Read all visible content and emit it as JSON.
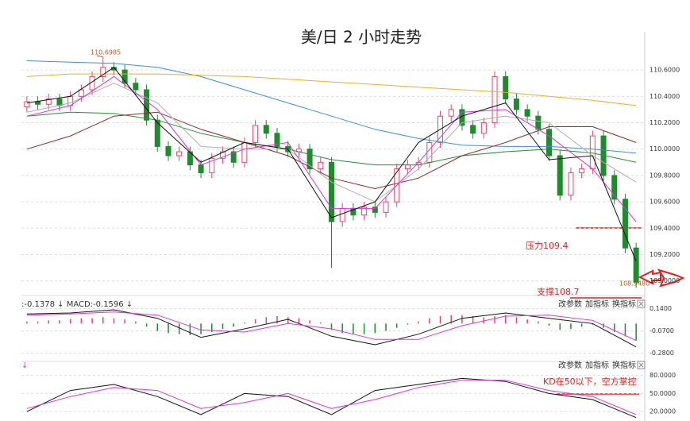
{
  "chart_data": [
    {
      "type": "candlestick",
      "title": "美/日 2 小时走势",
      "open": [
        110.32,
        110.36,
        110.34,
        110.38,
        110.33,
        110.4,
        110.45,
        110.55,
        110.62,
        110.6,
        110.5,
        110.45,
        110.22,
        110.02,
        109.95,
        109.98,
        109.88,
        109.82,
        109.93,
        109.98,
        109.9,
        110.05,
        110.18,
        110.12,
        110.02,
        109.98,
        110.0,
        109.85,
        109.9,
        109.45,
        109.55,
        109.5,
        109.56,
        109.52,
        109.6,
        109.85,
        109.88,
        109.9,
        110.05,
        110.25,
        110.3,
        110.18,
        110.12,
        110.2,
        110.55,
        110.38,
        110.3,
        110.25,
        110.15,
        109.95,
        109.65,
        109.82,
        109.85,
        110.1,
        109.8,
        109.62,
        109.25
      ],
      "high": [
        110.4,
        110.4,
        110.42,
        110.42,
        110.44,
        110.49,
        110.59,
        110.6985,
        110.66,
        110.64,
        110.54,
        110.49,
        110.26,
        110.06,
        110.02,
        110.02,
        109.92,
        109.97,
        110.02,
        110.02,
        110.09,
        110.22,
        110.22,
        110.16,
        110.06,
        110.04,
        110.04,
        109.94,
        109.94,
        109.59,
        109.59,
        109.6,
        109.6,
        109.64,
        109.89,
        109.92,
        109.94,
        110.09,
        110.29,
        110.34,
        110.34,
        110.22,
        110.24,
        110.59,
        110.59,
        110.42,
        110.34,
        110.29,
        110.19,
        109.99,
        109.86,
        109.89,
        110.14,
        110.14,
        109.84,
        109.66,
        109.29
      ],
      "low": [
        110.28,
        110.3,
        110.3,
        110.29,
        110.29,
        110.36,
        110.41,
        110.51,
        110.56,
        110.46,
        110.41,
        110.18,
        109.98,
        109.91,
        109.91,
        109.84,
        109.78,
        109.78,
        109.89,
        109.86,
        109.86,
        110.01,
        110.08,
        109.98,
        109.94,
        109.94,
        109.81,
        109.81,
        109.1,
        109.41,
        109.46,
        109.46,
        109.48,
        109.48,
        109.56,
        109.81,
        109.84,
        109.86,
        110.01,
        110.21,
        110.14,
        110.08,
        110.08,
        110.16,
        110.34,
        110.26,
        110.21,
        110.11,
        109.91,
        109.61,
        109.61,
        109.78,
        109.81,
        109.76,
        109.58,
        109.21,
        108.948
      ],
      "close": [
        110.36,
        110.34,
        110.38,
        110.33,
        110.4,
        110.45,
        110.55,
        110.62,
        110.6,
        110.5,
        110.45,
        110.22,
        110.02,
        109.95,
        109.98,
        109.88,
        109.82,
        109.93,
        109.98,
        109.9,
        110.05,
        110.18,
        110.12,
        110.02,
        109.98,
        110.0,
        109.85,
        109.9,
        109.45,
        109.55,
        109.5,
        109.56,
        109.52,
        109.6,
        109.85,
        109.88,
        109.9,
        110.05,
        110.25,
        110.3,
        110.18,
        110.12,
        110.2,
        110.55,
        110.38,
        110.3,
        110.25,
        110.15,
        109.95,
        109.65,
        109.82,
        109.85,
        110.1,
        109.8,
        109.62,
        109.25,
        108.99
      ],
      "up_color": "#e8476a",
      "down_color": "#1f8a2e",
      "series": [
        {
          "color": "#3f8fd8",
          "values": [
            110.67,
            110.66,
            110.65,
            110.62,
            110.55,
            110.45,
            110.35,
            110.25,
            110.15,
            110.08,
            110.03,
            110.02,
            110.02,
            110.0,
            109.97
          ]
        },
        {
          "color": "#e8b030",
          "values": [
            110.55,
            110.57,
            110.57,
            110.57,
            110.56,
            110.55,
            110.53,
            110.51,
            110.49,
            110.47,
            110.45,
            110.43,
            110.4,
            110.37,
            110.33
          ]
        },
        {
          "color": "#2e8b3a",
          "values": [
            110.25,
            110.28,
            110.27,
            110.22,
            110.12,
            110.05,
            110.0,
            109.92,
            109.88,
            109.88,
            109.95,
            109.98,
            110.0,
            109.97,
            109.9
          ]
        },
        {
          "color": "#8b2a2a",
          "values": [
            110.0,
            110.1,
            110.25,
            110.28,
            110.15,
            110.05,
            109.95,
            109.78,
            109.7,
            109.78,
            109.95,
            110.05,
            110.17,
            110.17,
            110.05
          ]
        },
        {
          "color": "#b0b0b0",
          "values": [
            110.28,
            110.35,
            110.5,
            110.35,
            110.02,
            110.0,
            110.0,
            109.75,
            109.6,
            109.85,
            110.2,
            110.25,
            110.2,
            109.95,
            109.75
          ]
        },
        {
          "color": "#d63ad6",
          "values": [
            110.25,
            110.33,
            110.55,
            110.3,
            109.88,
            110.0,
            110.05,
            109.55,
            109.55,
            109.9,
            110.28,
            110.3,
            110.1,
            109.85,
            109.45
          ]
        },
        {
          "color": "#111111",
          "values": [
            110.35,
            110.4,
            110.62,
            110.2,
            109.9,
            110.05,
            110.0,
            109.48,
            109.6,
            110.05,
            110.25,
            110.35,
            109.92,
            109.95,
            109.15
          ]
        }
      ],
      "ylim": [
        108.98,
        110.89
      ],
      "yticks": [
        {
          "value": 110.6,
          "label": "110.6000"
        },
        {
          "value": 110.4,
          "label": "110.4000"
        },
        {
          "value": 110.2,
          "label": "110.2000"
        },
        {
          "value": 110.0,
          "label": "110.0000"
        },
        {
          "value": 109.8,
          "label": "109.8000"
        },
        {
          "value": 109.6,
          "label": "109.6000"
        },
        {
          "value": 109.4,
          "label": "109.4000"
        },
        {
          "value": 109.2,
          "label": "109.2000"
        },
        {
          "value": 109.0,
          "label": "109.0000"
        }
      ],
      "annotations": [
        "110.6985",
        "108.9480",
        "压力109.4",
        "支撑108.7"
      ],
      "grid": true
    },
    {
      "type": "macd",
      "header": ":-0.1378 ↓ MACD:-0.1596 ↓",
      "toolbar": [
        "改参数",
        "加指标",
        "换指标"
      ],
      "histogram": [
        0.02,
        0.02,
        0.03,
        0.03,
        0.04,
        0.05,
        0.05,
        0.06,
        0.05,
        0.04,
        0.02,
        -0.03,
        -0.07,
        -0.09,
        -0.1,
        -0.11,
        -0.1,
        -0.08,
        -0.05,
        -0.03,
        0.01,
        0.04,
        0.06,
        0.07,
        0.06,
        0.05,
        0.03,
        0.01,
        -0.06,
        -0.09,
        -0.1,
        -0.1,
        -0.09,
        -0.07,
        -0.04,
        -0.01,
        0.02,
        0.05,
        0.07,
        0.08,
        0.08,
        0.07,
        0.06,
        0.07,
        0.08,
        0.06,
        0.04,
        0.02,
        -0.02,
        -0.06,
        -0.05,
        -0.03,
        -0.01,
        -0.04,
        -0.08,
        -0.12,
        -0.16
      ],
      "up_color": "#e8476a",
      "down_color": "#1f8a2e",
      "series": [
        {
          "color": "#111111",
          "values": [
            0.09,
            0.1,
            0.13,
            0.05,
            -0.13,
            -0.05,
            0.04,
            -0.12,
            -0.2,
            -0.1,
            0.05,
            0.1,
            0.05,
            0.0,
            -0.22
          ]
        },
        {
          "color": "#d63ad6",
          "values": [
            0.08,
            0.09,
            0.11,
            0.08,
            -0.06,
            -0.08,
            0.0,
            -0.05,
            -0.15,
            -0.15,
            -0.02,
            0.07,
            0.08,
            0.03,
            -0.16
          ]
        }
      ],
      "ylim": [
        -0.32,
        0.22
      ],
      "yticks": [
        {
          "value": 0.14,
          "label": "0.1400"
        },
        {
          "value": -0.07,
          "label": "-0.0700"
        },
        {
          "value": -0.28,
          "label": "-0.2800"
        }
      ],
      "grid": true
    },
    {
      "type": "kd",
      "header": "↓",
      "toolbar": [
        "改参数",
        "加指标",
        "换指标"
      ],
      "series": [
        {
          "color": "#111111",
          "values": [
            20,
            55,
            65,
            45,
            15,
            50,
            45,
            15,
            55,
            65,
            75,
            70,
            50,
            40,
            10
          ]
        },
        {
          "color": "#d63ad6",
          "values": [
            25,
            45,
            60,
            55,
            25,
            35,
            50,
            25,
            40,
            60,
            72,
            72,
            55,
            45,
            15
          ]
        }
      ],
      "ylim": [
        7,
        94
      ],
      "yticks": [
        {
          "value": 80,
          "label": "80.0000"
        },
        {
          "value": 50,
          "label": "50.0000"
        },
        {
          "value": 20,
          "label": "20.0000"
        }
      ],
      "annotations": [
        "KD在50以下，空方掌控"
      ],
      "grid": true
    }
  ]
}
